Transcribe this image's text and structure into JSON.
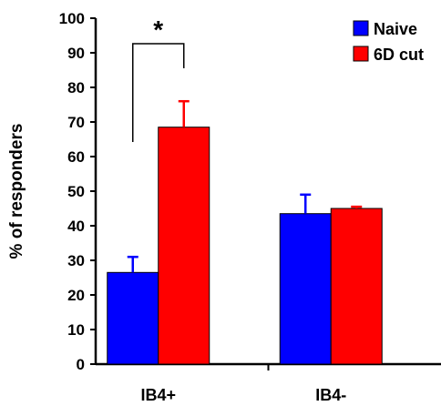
{
  "chart_data": {
    "type": "bar",
    "title": "",
    "xlabel": "",
    "ylabel": "% of responders",
    "ylim": [
      0,
      100
    ],
    "yticks": [
      0,
      10,
      20,
      30,
      40,
      50,
      60,
      70,
      80,
      90,
      100
    ],
    "categories": [
      "IB4+",
      "IB4-"
    ],
    "series": [
      {
        "name": "Naive",
        "color": "#0000ff",
        "values": [
          26.5,
          43.5
        ],
        "errors": [
          4.5,
          5.5
        ]
      },
      {
        "name": "6D cut",
        "color": "#ff0000",
        "values": [
          68.5,
          45.0
        ],
        "errors": [
          7.5,
          0.5
        ]
      }
    ],
    "legend_position": "top-right",
    "grid": false,
    "annotations": [
      {
        "text": "*",
        "type": "significance-bracket",
        "category": "IB4+"
      }
    ]
  }
}
